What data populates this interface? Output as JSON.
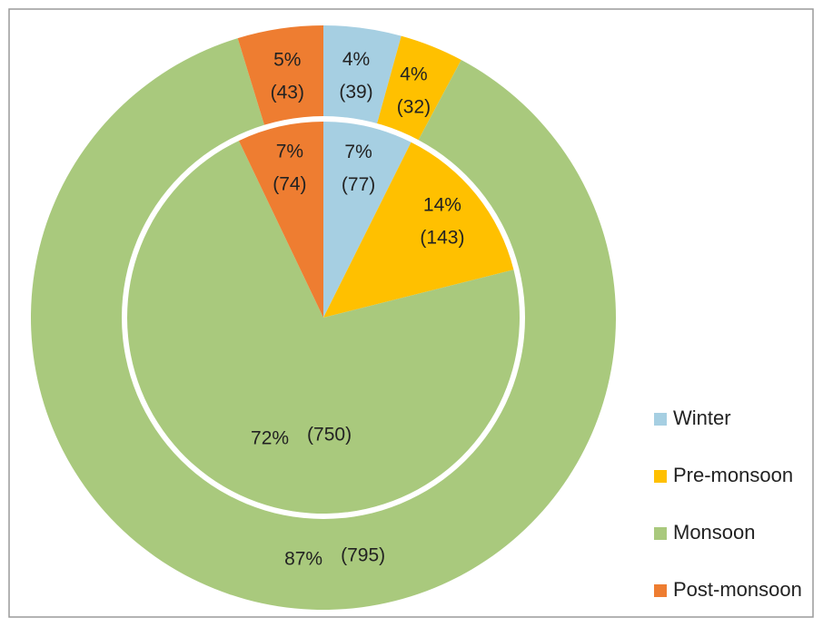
{
  "chart_data": {
    "type": "pie",
    "categories": [
      "Winter",
      "Pre-monsoon",
      "Monsoon",
      "Post-monsoon"
    ],
    "colors": [
      "#a6cfe2",
      "#ffc000",
      "#a9c97d",
      "#ee7d31"
    ],
    "rings": [
      {
        "values": [
          39,
          32,
          795,
          43
        ],
        "value_labels": [
          "(39)",
          "(32)",
          "(795)",
          "(43)"
        ],
        "percent_labels": [
          "4%",
          "4%",
          "87%",
          "5%"
        ]
      },
      {
        "values": [
          77,
          143,
          750,
          74
        ],
        "value_labels": [
          "(77)",
          "(143)",
          "(750)",
          "(74)"
        ],
        "percent_labels": [
          "7%",
          "14%",
          "72%",
          "7%"
        ]
      }
    ]
  }
}
